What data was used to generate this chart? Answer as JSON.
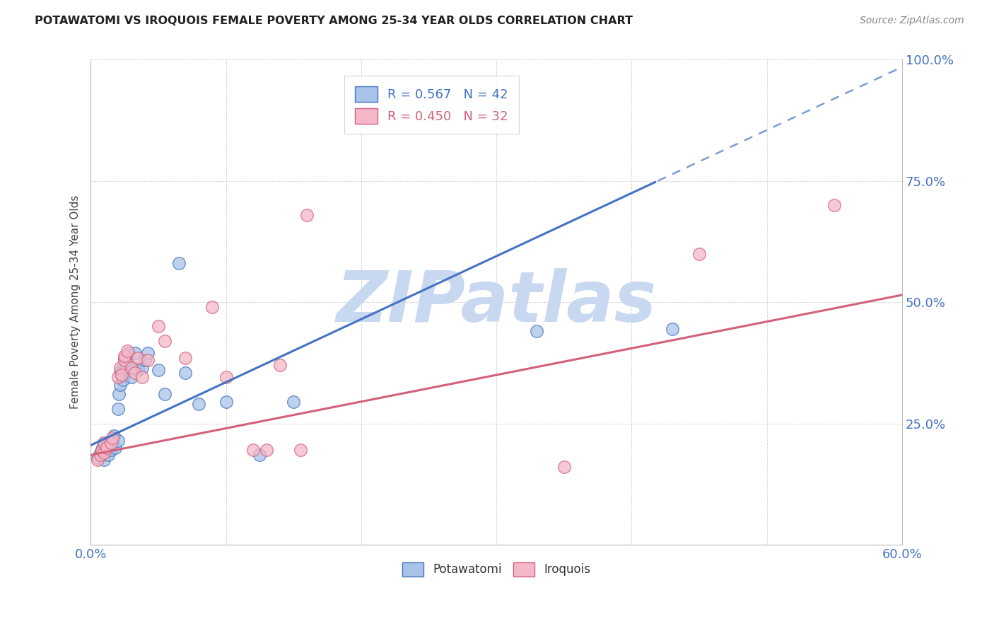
{
  "title": "POTAWATOMI VS IROQUOIS FEMALE POVERTY AMONG 25-34 YEAR OLDS CORRELATION CHART",
  "source": "Source: ZipAtlas.com",
  "ylabel_label": "Female Poverty Among 25-34 Year Olds",
  "xlim": [
    0.0,
    0.6
  ],
  "ylim": [
    0.0,
    1.0
  ],
  "potawatomi_color": "#a8c4e8",
  "iroquois_color": "#f5b8c8",
  "line_blue": "#4472c4",
  "line_pink": "#d4607a",
  "background_color": "#ffffff",
  "legend_R1": "R = 0.567",
  "legend_N1": "N = 42",
  "legend_R2": "R = 0.450",
  "legend_N2": "N = 32",
  "potawatomi_x": [
    0.005,
    0.007,
    0.008,
    0.009,
    0.01,
    0.01,
    0.012,
    0.013,
    0.015,
    0.015,
    0.016,
    0.017,
    0.018,
    0.02,
    0.02,
    0.021,
    0.022,
    0.022,
    0.023,
    0.024,
    0.025,
    0.025,
    0.026,
    0.027,
    0.028,
    0.03,
    0.032,
    0.033,
    0.035,
    0.038,
    0.04,
    0.042,
    0.05,
    0.055,
    0.065,
    0.07,
    0.08,
    0.1,
    0.125,
    0.15,
    0.33,
    0.43
  ],
  "potawatomi_y": [
    0.18,
    0.19,
    0.195,
    0.2,
    0.175,
    0.21,
    0.205,
    0.185,
    0.195,
    0.215,
    0.21,
    0.225,
    0.2,
    0.215,
    0.28,
    0.31,
    0.33,
    0.355,
    0.36,
    0.34,
    0.355,
    0.385,
    0.365,
    0.38,
    0.395,
    0.345,
    0.365,
    0.395,
    0.36,
    0.365,
    0.38,
    0.395,
    0.36,
    0.31,
    0.58,
    0.355,
    0.29,
    0.295,
    0.185,
    0.295,
    0.44,
    0.445
  ],
  "iroquois_x": [
    0.005,
    0.007,
    0.008,
    0.01,
    0.01,
    0.012,
    0.015,
    0.016,
    0.02,
    0.022,
    0.023,
    0.025,
    0.025,
    0.027,
    0.03,
    0.033,
    0.035,
    0.038,
    0.042,
    0.05,
    0.055,
    0.07,
    0.09,
    0.1,
    0.12,
    0.13,
    0.14,
    0.155,
    0.16,
    0.35,
    0.45,
    0.55
  ],
  "iroquois_y": [
    0.175,
    0.185,
    0.195,
    0.19,
    0.21,
    0.2,
    0.21,
    0.22,
    0.345,
    0.365,
    0.35,
    0.38,
    0.39,
    0.4,
    0.365,
    0.355,
    0.385,
    0.345,
    0.38,
    0.45,
    0.42,
    0.385,
    0.49,
    0.345,
    0.195,
    0.195,
    0.37,
    0.195,
    0.68,
    0.16,
    0.6,
    0.7
  ],
  "watermark_text": "ZIPatlas",
  "watermark_color": "#c8d8f0",
  "watermark_fontsize": 72,
  "blue_line_intercept": 0.205,
  "blue_line_slope": 1.3,
  "pink_line_intercept": 0.185,
  "pink_line_slope": 0.55
}
